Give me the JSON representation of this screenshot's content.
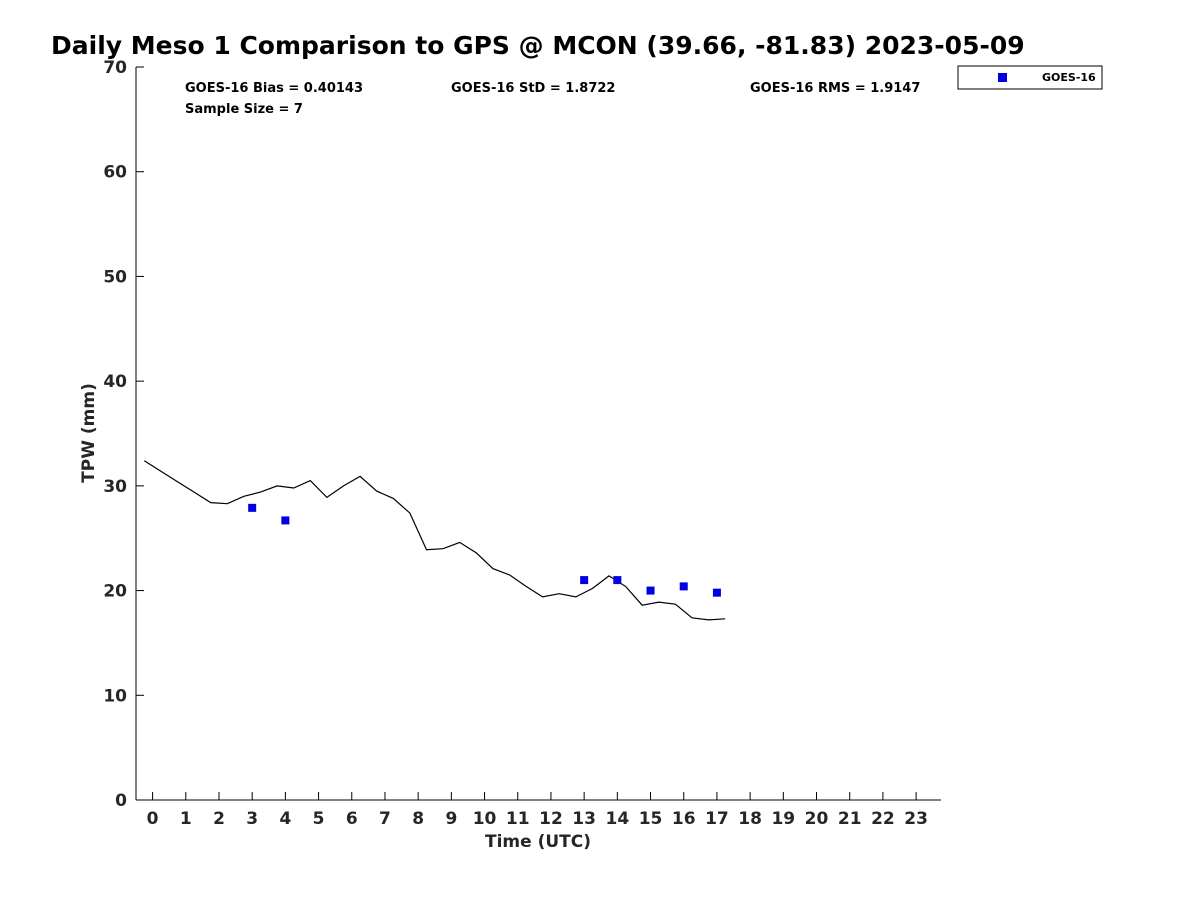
{
  "chart_data": {
    "type": "line",
    "title": "Daily Meso 1 Comparison to GPS @ MCON (39.66, -81.83) 2023-05-09",
    "xlabel": "Time (UTC)",
    "ylabel": "TPW (mm)",
    "xlim": [
      -0.5,
      23.75
    ],
    "ylim": [
      0,
      70
    ],
    "x_ticks": [
      0,
      1,
      2,
      3,
      4,
      5,
      6,
      7,
      8,
      9,
      10,
      11,
      12,
      13,
      14,
      15,
      16,
      17,
      18,
      19,
      20,
      21,
      22,
      23
    ],
    "y_ticks": [
      0,
      10,
      20,
      30,
      40,
      50,
      60,
      70
    ],
    "grid": false,
    "legend_position": "top-right",
    "stats": {
      "bias": "GOES-16 Bias = 0.40143",
      "std": "GOES-16 StD = 1.8722",
      "rms": "GOES-16 RMS = 1.9147",
      "sample": "Sample Size = 7"
    },
    "series": [
      {
        "type": "line",
        "color": "#000000",
        "x": [
          -0.25,
          0.25,
          0.75,
          1.25,
          1.75,
          2.25,
          2.75,
          3.25,
          3.75,
          4.25,
          4.75,
          5.25,
          5.75,
          6.25,
          6.75,
          7.25,
          7.75,
          8.25,
          8.75,
          9.25,
          9.75,
          10.25,
          10.75,
          11.25,
          11.75,
          12.25,
          12.75,
          13.25,
          13.75,
          14.25,
          14.75,
          15.25,
          15.75,
          16.25,
          16.75,
          17.25
        ],
        "y": [
          32.4,
          31.4,
          30.4,
          29.4,
          28.4,
          28.3,
          29.0,
          29.4,
          30.0,
          29.8,
          30.5,
          28.9,
          30.0,
          30.9,
          29.5,
          28.8,
          27.4,
          23.9,
          24.0,
          24.6,
          23.6,
          22.1,
          21.5,
          20.4,
          19.4,
          19.7,
          19.4,
          20.2,
          21.4,
          20.4,
          18.6,
          18.9,
          18.7,
          17.4,
          17.2,
          17.3
        ]
      },
      {
        "type": "scatter",
        "name": "GOES-16",
        "color": "#0000e0",
        "x": [
          3,
          4,
          13,
          14,
          15,
          16,
          17
        ],
        "y": [
          27.9,
          26.7,
          21.0,
          21.0,
          20.0,
          20.4,
          19.8
        ]
      }
    ]
  }
}
